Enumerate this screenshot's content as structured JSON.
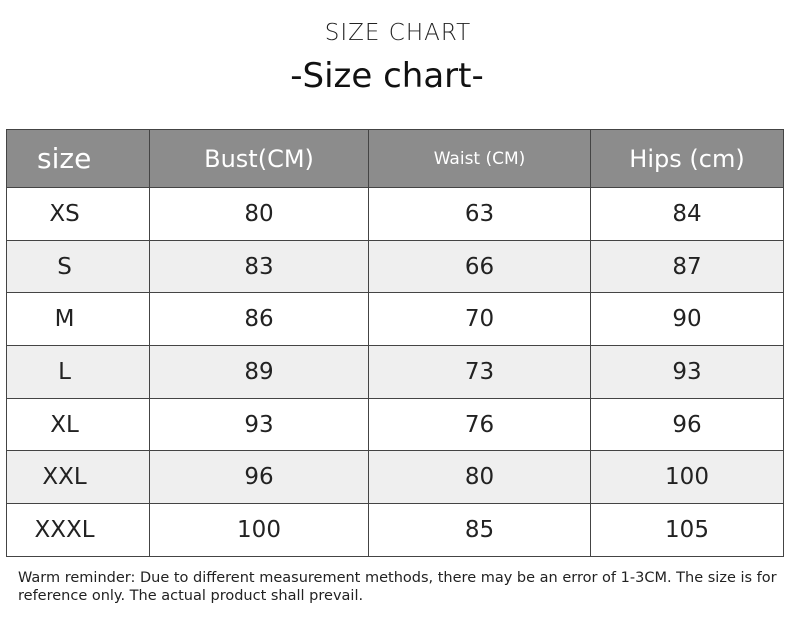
{
  "heading": "SIZE CHART",
  "subheading": "-Size chart-",
  "table": {
    "headers": [
      "size",
      "Bust(CM)",
      "Waist (CM)",
      "Hips (cm)"
    ],
    "rows": [
      [
        "XS",
        "80",
        "63",
        "84"
      ],
      [
        "S",
        "83",
        "66",
        "87"
      ],
      [
        "M",
        "86",
        "70",
        "90"
      ],
      [
        "L",
        "89",
        "73",
        "93"
      ],
      [
        "XL",
        "93",
        "76",
        "96"
      ],
      [
        "XXL",
        "96",
        "80",
        "100"
      ],
      [
        "XXXL",
        "100",
        "85",
        "105"
      ]
    ]
  },
  "note": "Warm reminder: Due to different measurement methods, there may be an error of 1-3CM. The size is for reference only. The actual product shall prevail.",
  "colors": {
    "header_bg": "#8c8c8c",
    "alt_row_bg": "#efefef"
  }
}
